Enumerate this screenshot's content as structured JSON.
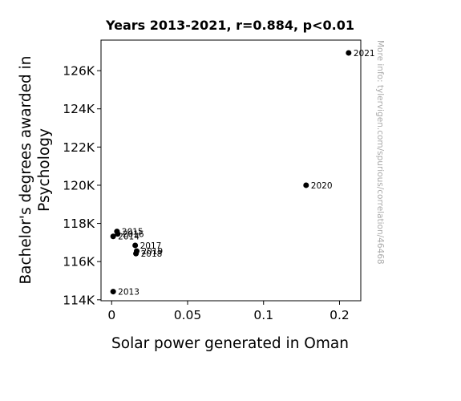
{
  "chart_data": {
    "type": "scatter",
    "title": "Years 2013-2021, r=0.884, p<0.01",
    "xlabel": "Solar power generated in Oman",
    "ylabel_lines": [
      "Bachelor's degrees awarded in",
      "Psychology"
    ],
    "watermark": "More info: tylervigen.com/spurious/correlation/46468",
    "xlim": [
      -0.007,
      0.164
    ],
    "ylim": [
      113950,
      127600
    ],
    "xticks": [
      {
        "value": 0,
        "label": "0"
      },
      {
        "value": 0.05,
        "label": "0.05"
      },
      {
        "value": 0.1,
        "label": "0.1"
      },
      {
        "value": 0.15,
        "label": "0.2"
      }
    ],
    "yticks": [
      {
        "value": 114000,
        "label": "114K"
      },
      {
        "value": 116000,
        "label": "116K"
      },
      {
        "value": 118000,
        "label": "118K"
      },
      {
        "value": 120000,
        "label": "120K"
      },
      {
        "value": 122000,
        "label": "122K"
      },
      {
        "value": 124000,
        "label": "124K"
      },
      {
        "value": 126000,
        "label": "126K"
      }
    ],
    "points": [
      {
        "label": "2013",
        "x": 0.001,
        "y": 114430
      },
      {
        "label": "2014",
        "x": 0.001,
        "y": 117320
      },
      {
        "label": "2015",
        "x": 0.0035,
        "y": 117580
      },
      {
        "label": "2016",
        "x": 0.004,
        "y": 117450
      },
      {
        "label": "2017",
        "x": 0.0155,
        "y": 116850
      },
      {
        "label": "2018",
        "x": 0.016,
        "y": 116420
      },
      {
        "label": "2019",
        "x": 0.0165,
        "y": 116550
      },
      {
        "label": "2020",
        "x": 0.128,
        "y": 120000
      },
      {
        "label": "2021",
        "x": 0.156,
        "y": 126930
      }
    ],
    "grid": false,
    "marker_color": "#000000"
  }
}
